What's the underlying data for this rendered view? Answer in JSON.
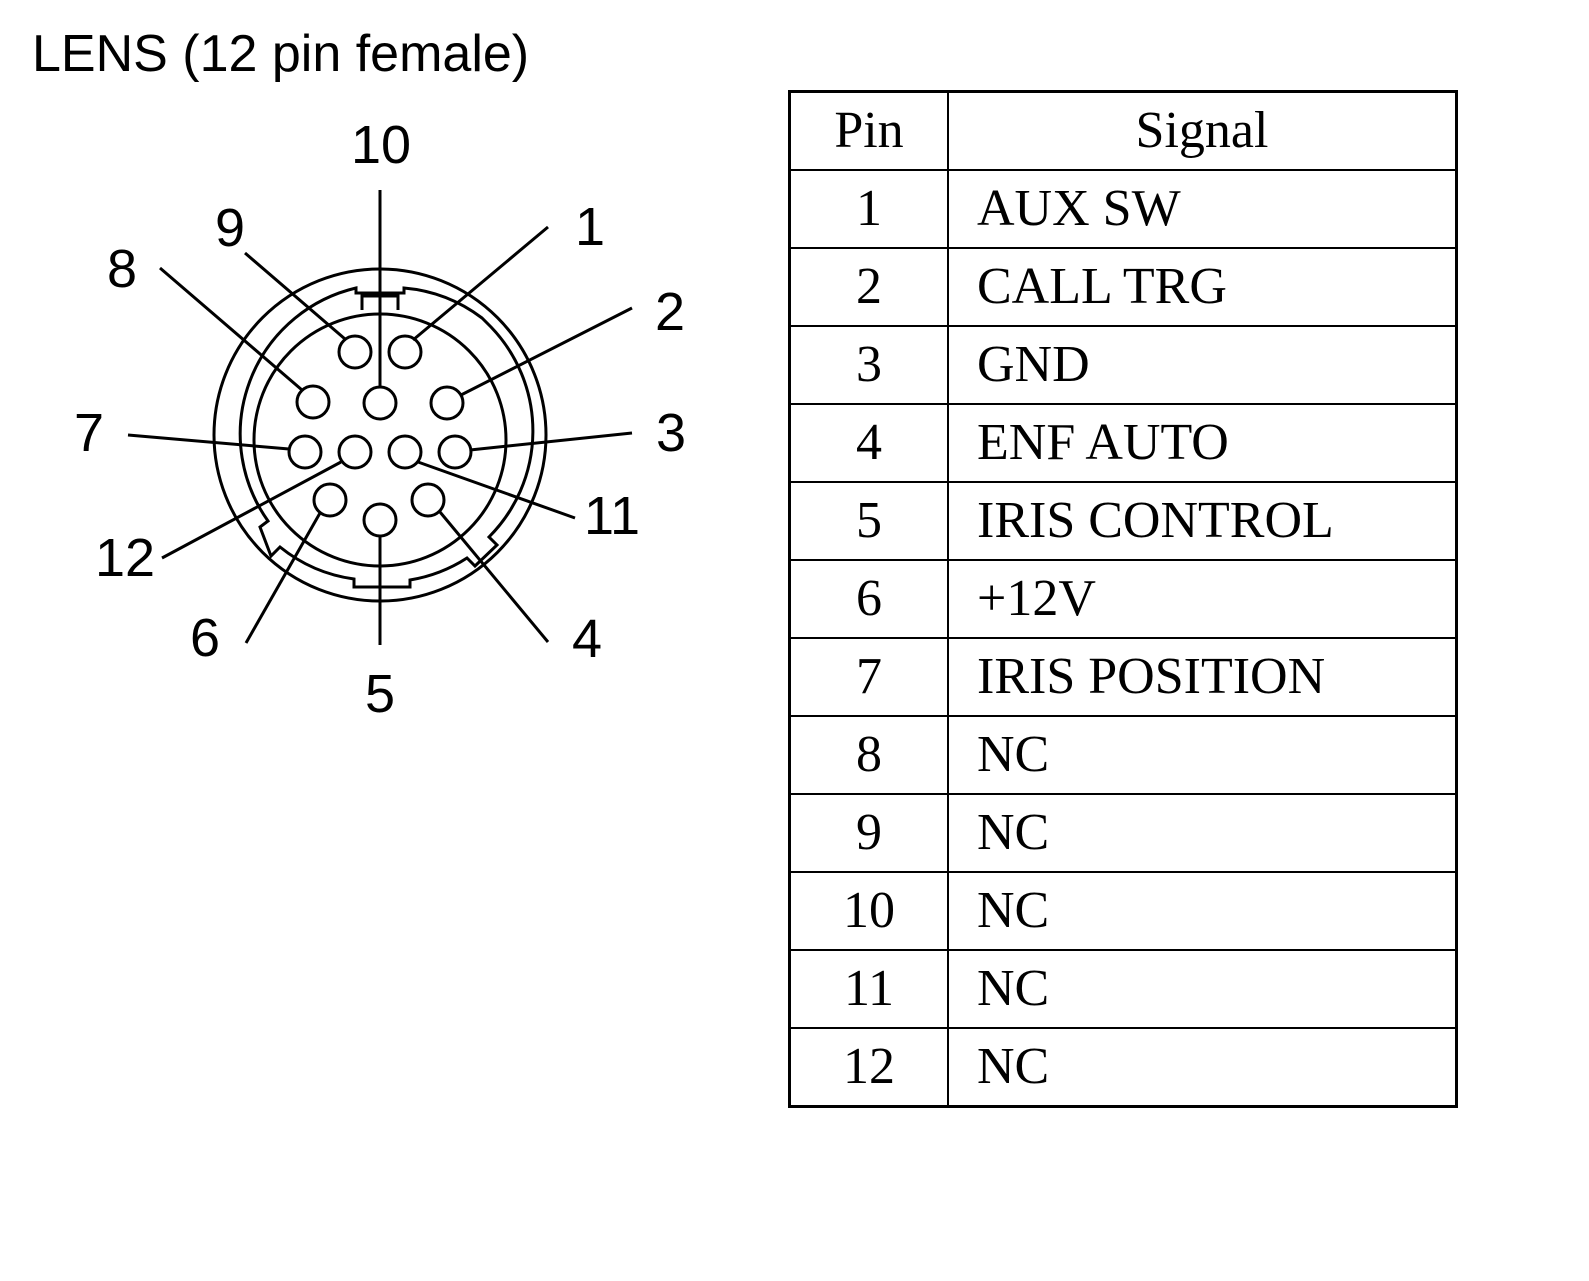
{
  "title": "LENS (12 pin female)",
  "connector": {
    "labels": [
      "1",
      "2",
      "3",
      "4",
      "5",
      "6",
      "7",
      "8",
      "9",
      "10",
      "11",
      "12"
    ]
  },
  "table": {
    "headers": {
      "pin": "Pin",
      "signal": "Signal"
    },
    "rows": [
      {
        "pin": "1",
        "signal": "AUX SW"
      },
      {
        "pin": "2",
        "signal": "CALL TRG"
      },
      {
        "pin": "3",
        "signal": "GND"
      },
      {
        "pin": "4",
        "signal": "ENF AUTO"
      },
      {
        "pin": "5",
        "signal": "IRIS CONTROL"
      },
      {
        "pin": "6",
        "signal": "+12V"
      },
      {
        "pin": "7",
        "signal": "IRIS POSITION"
      },
      {
        "pin": "8",
        "signal": "NC"
      },
      {
        "pin": "9",
        "signal": "NC"
      },
      {
        "pin": "10",
        "signal": "NC"
      },
      {
        "pin": "11",
        "signal": "NC"
      },
      {
        "pin": "12",
        "signal": "NC"
      }
    ]
  }
}
